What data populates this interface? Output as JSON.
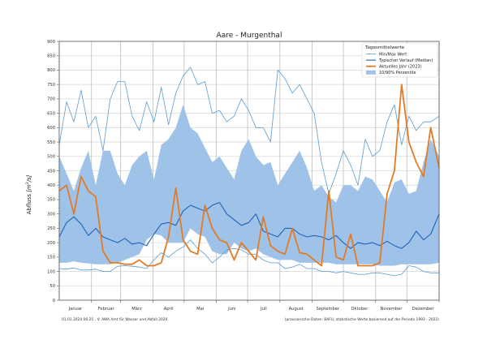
{
  "chart_data": {
    "type": "line",
    "title": "Aare - Murgenthal",
    "xlabel": "",
    "ylabel": "Abfluss [m³/s]",
    "ylabel_main": "Abfluss ",
    "ylabel_unit": "[m",
    "ylabel_sup": "3",
    "ylabel_tail": "/s]",
    "ylim": [
      0,
      900
    ],
    "y_ticks": [
      0,
      50,
      100,
      150,
      200,
      250,
      300,
      350,
      400,
      450,
      500,
      550,
      600,
      650,
      700,
      750,
      800,
      850,
      900
    ],
    "xlim_days": [
      0,
      365
    ],
    "month_ticks": [
      "Januar",
      "Februar",
      "März",
      "April",
      "Mai",
      "Juni",
      "Juli",
      "August",
      "September",
      "Oktober",
      "November",
      "Dezember"
    ],
    "grid": true,
    "legend": {
      "title": "Tagesmittelwerte",
      "placement": "top-right",
      "entries": [
        {
          "label": "Min/Max Wert",
          "color": "#5b9bd5",
          "kind": "line-thin"
        },
        {
          "label": "Typischer Verlauf (Median)",
          "color": "#1f63b9",
          "kind": "line"
        },
        {
          "label": "Aktuelles Jahr (2023)",
          "color": "#e37b25",
          "kind": "line-thick"
        },
        {
          "label": "10/90% Perzentile",
          "color": "#9fc2e8",
          "kind": "area"
        }
      ]
    },
    "x_days": [
      0,
      7,
      14,
      21,
      28,
      35,
      42,
      49,
      56,
      63,
      70,
      77,
      84,
      91,
      98,
      105,
      112,
      119,
      126,
      133,
      140,
      147,
      154,
      161,
      168,
      175,
      182,
      189,
      196,
      203,
      210,
      217,
      224,
      231,
      238,
      245,
      252,
      259,
      266,
      273,
      280,
      287,
      294,
      301,
      308,
      315,
      322,
      329,
      336,
      343,
      350,
      357,
      365
    ],
    "series": [
      {
        "name": "Max",
        "color": "#5b9bd5",
        "values": [
          540,
          690,
          620,
          730,
          600,
          640,
          520,
          700,
          760,
          760,
          640,
          590,
          690,
          620,
          740,
          610,
          720,
          780,
          810,
          750,
          760,
          650,
          660,
          620,
          640,
          700,
          660,
          600,
          600,
          550,
          800,
          770,
          720,
          750,
          700,
          650,
          480,
          370,
          440,
          520,
          470,
          400,
          560,
          500,
          520,
          620,
          680,
          540,
          640,
          590,
          620,
          620,
          640
        ]
      },
      {
        "name": "Median",
        "color": "#1f63b9",
        "values": [
          220,
          270,
          290,
          265,
          225,
          250,
          220,
          210,
          200,
          215,
          195,
          200,
          190,
          230,
          265,
          270,
          260,
          310,
          330,
          320,
          310,
          330,
          340,
          300,
          280,
          260,
          270,
          300,
          240,
          230,
          220,
          250,
          250,
          230,
          220,
          225,
          220,
          210,
          225,
          200,
          180,
          200,
          195,
          200,
          190,
          205,
          190,
          180,
          200,
          240,
          210,
          230,
          300
        ]
      },
      {
        "name": "P90",
        "color": "#9fc2e8",
        "values": [
          500,
          440,
          380,
          460,
          520,
          400,
          520,
          520,
          440,
          400,
          470,
          500,
          520,
          420,
          540,
          560,
          600,
          680,
          600,
          580,
          530,
          480,
          500,
          460,
          420,
          520,
          560,
          500,
          470,
          480,
          400,
          440,
          480,
          520,
          460,
          380,
          400,
          360,
          340,
          400,
          400,
          380,
          430,
          420,
          380,
          340,
          410,
          420,
          370,
          380,
          480,
          560,
          500
        ]
      },
      {
        "name": "P10",
        "color": "#9fc2e8",
        "values": [
          130,
          130,
          135,
          130,
          128,
          125,
          125,
          125,
          130,
          140,
          150,
          160,
          210,
          230,
          225,
          200,
          200,
          200,
          250,
          230,
          220,
          170,
          160,
          160,
          200,
          180,
          170,
          180,
          160,
          150,
          140,
          140,
          140,
          130,
          130,
          130,
          130,
          130,
          125,
          125,
          125,
          125,
          125,
          125,
          120,
          120,
          120,
          125,
          125,
          125,
          125,
          125,
          130
        ]
      },
      {
        "name": "Min",
        "color": "#5b9bd5",
        "values": [
          110,
          108,
          112,
          105,
          105,
          108,
          100,
          100,
          118,
          120,
          118,
          115,
          110,
          140,
          165,
          150,
          170,
          185,
          210,
          180,
          160,
          130,
          150,
          175,
          180,
          175,
          160,
          160,
          140,
          130,
          130,
          110,
          115,
          125,
          110,
          110,
          100,
          100,
          95,
          100,
          95,
          90,
          90,
          95,
          95,
          90,
          85,
          90,
          120,
          115,
          100,
          95,
          95
        ]
      },
      {
        "name": "Aktuelles Jahr (2023)",
        "color": "#e37b25",
        "values": [
          380,
          400,
          300,
          430,
          380,
          360,
          170,
          130,
          130,
          125,
          125,
          140,
          120,
          120,
          130,
          220,
          390,
          210,
          170,
          160,
          330,
          250,
          210,
          200,
          140,
          200,
          170,
          140,
          290,
          190,
          170,
          160,
          250,
          165,
          160,
          140,
          120,
          380,
          150,
          140,
          230,
          120,
          120,
          120,
          130,
          370,
          450,
          750,
          550,
          480,
          430,
          600,
          460
        ]
      }
    ]
  },
  "footer": {
    "left": "01.01.2024 06:25 , © AWA Amt für Wasser und Abfall 2020",
    "right": "(provisorische Daten: BAFU, statistische Werte basierend auf der Periode 1993 - 2022)"
  }
}
